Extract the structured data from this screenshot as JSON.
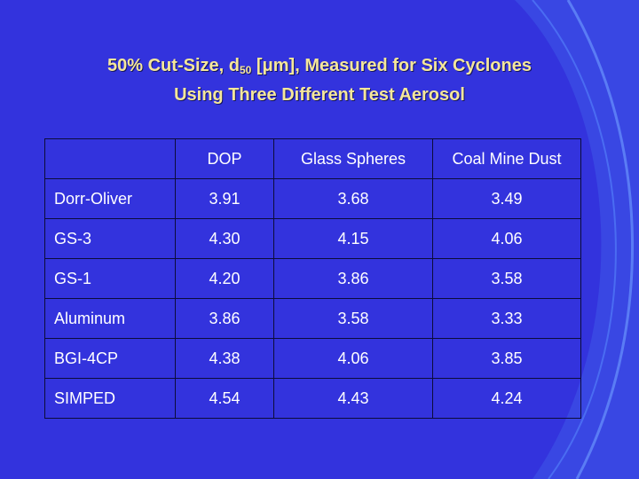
{
  "title": {
    "line1_pre": "50% Cut-Size, d",
    "line1_sub": "50",
    "line1_post": " [μm], Measured for Six Cyclones",
    "line2": "Using Three Different Test Aerosol"
  },
  "table": {
    "columns": [
      "",
      "DOP",
      "Glass Spheres",
      "Coal Mine Dust"
    ],
    "rows": [
      {
        "label": "Dorr-Oliver",
        "values": [
          "3.91",
          "3.68",
          "3.49"
        ]
      },
      {
        "label": "GS-3",
        "values": [
          "4.30",
          "4.15",
          "4.06"
        ]
      },
      {
        "label": "GS-1",
        "values": [
          "4.20",
          "3.86",
          "3.58"
        ]
      },
      {
        "label": "Aluminum",
        "values": [
          "3.86",
          "3.58",
          "3.33"
        ]
      },
      {
        "label": "BGI-4CP",
        "values": [
          "4.38",
          "4.06",
          "3.85"
        ]
      },
      {
        "label": "SIMPED",
        "values": [
          "4.54",
          "4.43",
          "4.24"
        ]
      }
    ]
  },
  "colors": {
    "background": "#3333dd",
    "title": "#f5e79a",
    "text": "#ffffff",
    "curve": "#4a6cf2"
  }
}
